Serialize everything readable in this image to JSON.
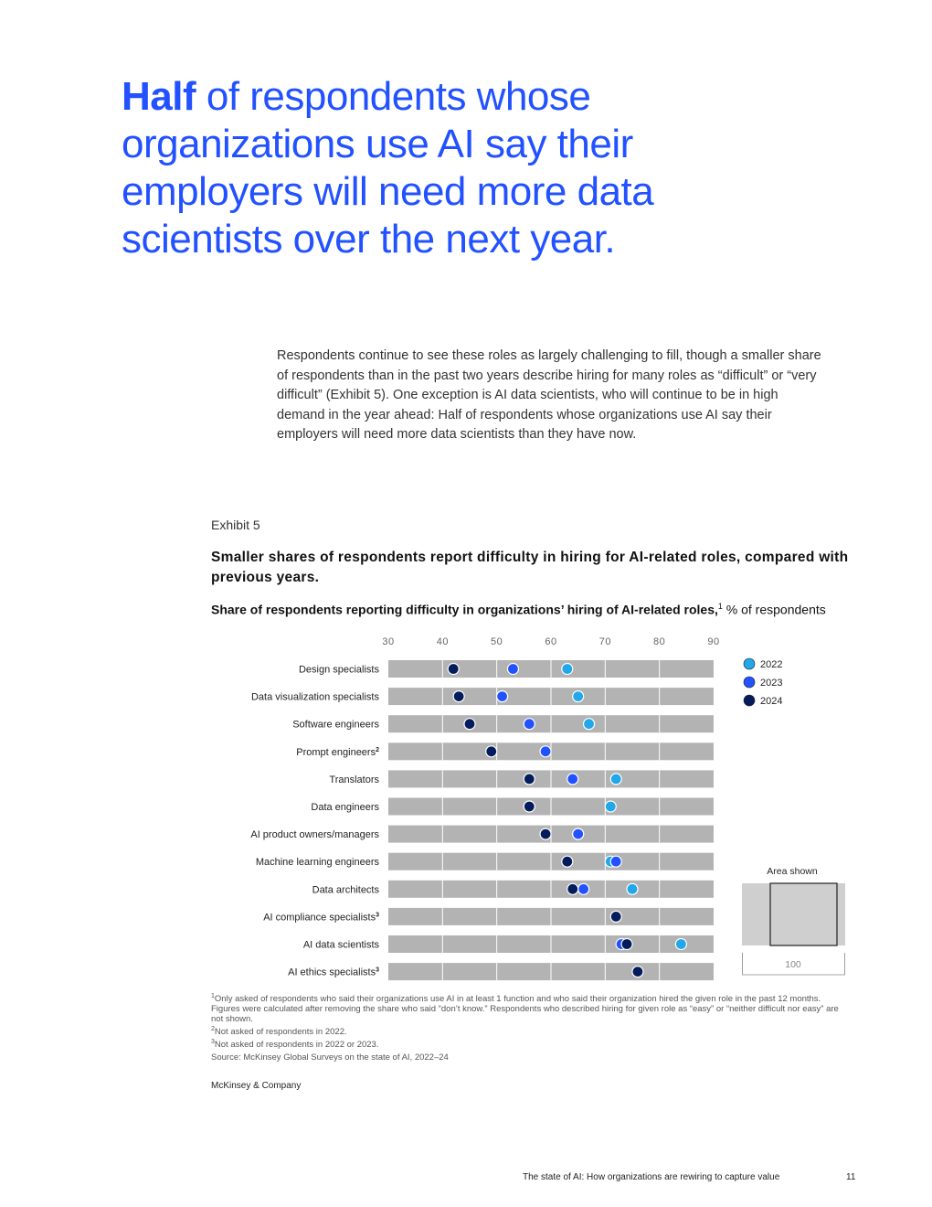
{
  "headline": {
    "bold": "Half",
    "rest": " of respondents whose organizations use AI say their employers will need more data scientists over the next year."
  },
  "body_text": "Respondents continue to see these roles as largely challenging to fill, though a smaller share of respondents than in the past two years describe hiring for many roles as “difficult” or “very difficult” (Exhibit 5). One exception is AI data scientists, who will continue to be in high demand in the year ahead: Half of respondents whose organizations use AI say their employers will need more data scientists than they have now.",
  "exhibit": {
    "label": "Exhibit 5",
    "title": "Smaller shares of respondents report difficulty in hiring for AI-related roles, compared with previous years.",
    "subtitle_bold": "Share of respondents reporting difficulty in organizations’ hiring of AI-related roles,",
    "subtitle_sup": "1",
    "subtitle_unit": " % of respondents"
  },
  "chart_data": {
    "type": "scatter",
    "xlim": [
      30,
      90
    ],
    "x_ticks": [
      "30",
      "40",
      "50",
      "60",
      "70",
      "80",
      "90"
    ],
    "categories": [
      {
        "label": "Design specialists",
        "sup": ""
      },
      {
        "label": "Data visualization specialists",
        "sup": ""
      },
      {
        "label": "Software engineers",
        "sup": ""
      },
      {
        "label": "Prompt engineers",
        "sup": "2"
      },
      {
        "label": "Translators",
        "sup": ""
      },
      {
        "label": "Data engineers",
        "sup": ""
      },
      {
        "label": "AI product owners/managers",
        "sup": ""
      },
      {
        "label": "Machine learning engineers",
        "sup": ""
      },
      {
        "label": "Data architects",
        "sup": ""
      },
      {
        "label": "AI compliance specialists",
        "sup": "3"
      },
      {
        "label": "AI data scientists",
        "sup": ""
      },
      {
        "label": "AI ethics specialists",
        "sup": "3"
      }
    ],
    "series": [
      {
        "name": "2022",
        "color": "#22a7e8",
        "values": [
          63,
          65,
          67,
          null,
          72,
          71,
          65,
          71,
          75,
          null,
          84,
          null
        ]
      },
      {
        "name": "2023",
        "color": "#2251ff",
        "values": [
          53,
          51,
          56,
          59,
          64,
          56,
          65,
          72,
          66,
          null,
          73,
          null
        ]
      },
      {
        "name": "2024",
        "color": "#051c5c",
        "values": [
          42,
          43,
          45,
          49,
          56,
          56,
          59,
          63,
          64,
          72,
          74,
          76
        ]
      }
    ],
    "grid": true,
    "legend_position": "right",
    "inset": {
      "title": "Area shown",
      "value": "100"
    }
  },
  "footnotes": [
    {
      "sup": "1",
      "text": "Only asked of respondents who said their organizations use AI in at least 1 function and who said their organization hired the given role in the past 12 months. Figures were calculated after removing the share who said “don’t know.” Respondents who described hiring for given role as “easy” or “neither difficult nor easy” are not shown."
    },
    {
      "sup": "2",
      "text": "Not asked of respondents in 2022."
    },
    {
      "sup": "3",
      "text": "Not asked of respondents in 2022 or 2023."
    },
    {
      "sup": "",
      "text": "Source: McKinsey Global Surveys on the state of AI, 2022–24"
    }
  ],
  "brand": "McKinsey & Company",
  "running_footer": "The state of AI: How organizations are rewiring to capture value",
  "page_number": "11"
}
